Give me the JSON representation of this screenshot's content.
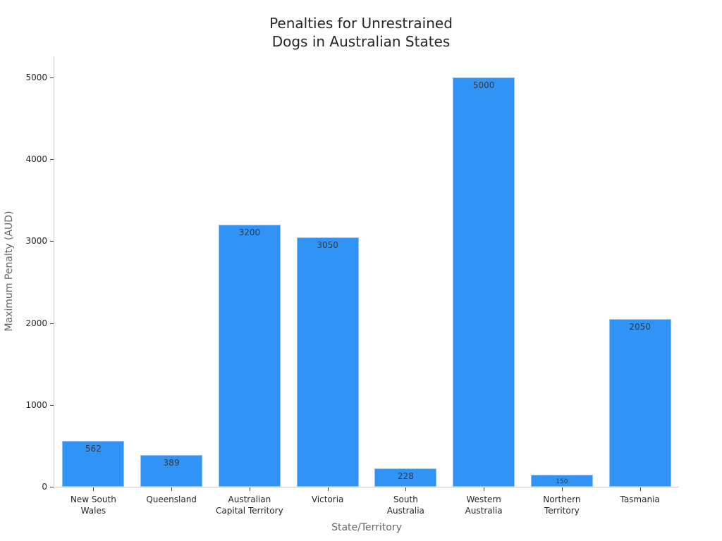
{
  "chart_data": {
    "type": "bar",
    "title": "Penalties for Unrestrained\nDogs in Australian States",
    "title_lines": [
      "Penalties for Unrestrained",
      "Dogs in Australian States"
    ],
    "xlabel": "State/Territory",
    "ylabel": "Maximum Penalty (AUD)",
    "categories": [
      "New South Wales",
      "Queensland",
      "Australian Capital Territory",
      "Victoria",
      "South Australia",
      "Western Australia",
      "Northern Territory",
      "Tasmania"
    ],
    "category_labels": [
      "New South\nWales",
      "Queensland",
      "Australian\nCapital Territory",
      "Victoria",
      "South\nAustralia",
      "Western\nAustralia",
      "Northern\nTerritory",
      "Tasmania"
    ],
    "values": [
      562,
      389,
      3200,
      3050,
      228,
      5000,
      150,
      2050
    ],
    "value_labels": [
      "562",
      "389",
      "3200",
      "3050",
      "228",
      "5000",
      "150",
      "2050"
    ],
    "ylim": [
      0,
      5000
    ],
    "yticks": [
      0,
      1000,
      2000,
      3000,
      4000,
      5000
    ],
    "ytick_labels": [
      "0",
      "1000",
      "2000",
      "3000",
      "4000",
      "5000"
    ],
    "grid": false,
    "legend": null,
    "bar_color": "#3193f5"
  }
}
